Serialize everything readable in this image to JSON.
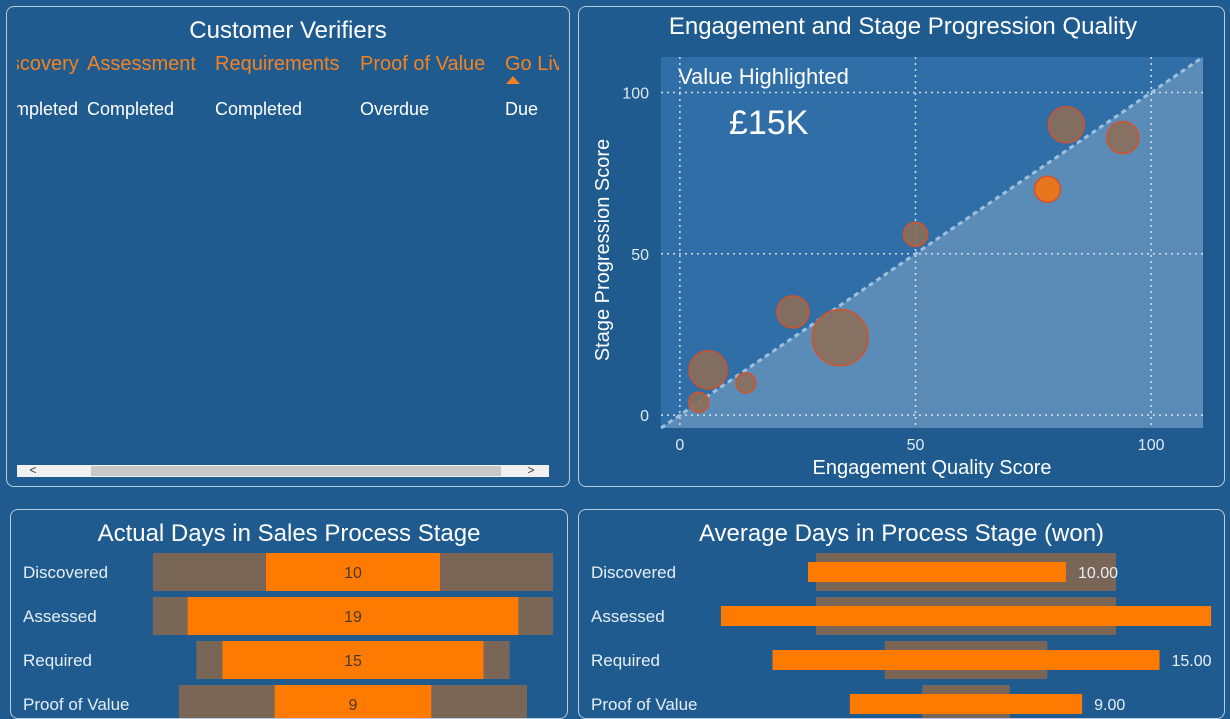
{
  "customer_verifiers": {
    "title": "Customer Verifiers",
    "columns": [
      {
        "header": "Discovery",
        "value": "Completed"
      },
      {
        "header": "Assessment",
        "value": "Completed"
      },
      {
        "header": "Requirements",
        "value": "Completed"
      },
      {
        "header": "Proof of Value",
        "value": "Overdue"
      },
      {
        "header": "Go Live",
        "value": "Due"
      }
    ],
    "sorted_column": "Go Live",
    "scroll_left": "<",
    "scroll_right": ">"
  },
  "colors": {
    "background": "#1f5b8f",
    "orange": "#ff7a00",
    "bubble": "#8b6e5a",
    "ghost_bar": "#7a6656",
    "plot_dark": "#2f6ea6",
    "plot_light": "#5b8cb8"
  },
  "chart_data": [
    {
      "type": "scatter",
      "title": "Engagement and Stage Progression Quality",
      "xlabel": "Engagement Quality Score",
      "ylabel": "Stage Progression Score",
      "xlim": [
        -4,
        111
      ],
      "ylim": [
        -4,
        111
      ],
      "xticks": [
        0,
        50,
        100
      ],
      "yticks": [
        0,
        50,
        100
      ],
      "grid": true,
      "reference_line": "y = x",
      "annotation": {
        "label": "Value Highlighted",
        "value": "£15K"
      },
      "points": [
        {
          "x": 4,
          "y": 4,
          "size": 1.0,
          "highlighted": false
        },
        {
          "x": 6,
          "y": 14,
          "size": 1.9,
          "highlighted": false
        },
        {
          "x": 14,
          "y": 10,
          "size": 1.0,
          "highlighted": false
        },
        {
          "x": 24,
          "y": 32,
          "size": 1.6,
          "highlighted": false
        },
        {
          "x": 34,
          "y": 24,
          "size": 2.8,
          "highlighted": false
        },
        {
          "x": 50,
          "y": 56,
          "size": 1.2,
          "highlighted": false
        },
        {
          "x": 78,
          "y": 70,
          "size": 1.3,
          "highlighted": true
        },
        {
          "x": 82,
          "y": 90,
          "size": 1.8,
          "highlighted": false
        },
        {
          "x": 94,
          "y": 86,
          "size": 1.6,
          "highlighted": false
        }
      ]
    },
    {
      "type": "bar",
      "title": "Actual Days in Sales Process Stage",
      "categories": [
        "Discovered",
        "Assessed",
        "Required",
        "Proof of Value"
      ],
      "values": [
        10,
        19,
        15,
        9
      ],
      "data_labels": [
        "10",
        "19",
        "15",
        "9"
      ],
      "reference_values": [
        23,
        23,
        18,
        20
      ]
    },
    {
      "type": "bar",
      "title": "Average Days in Process Stage (won)",
      "categories": [
        "Discovered",
        "Assessed",
        "Required",
        "Proof of Value"
      ],
      "values": [
        10,
        19,
        15,
        9
      ],
      "data_labels": [
        "10.00",
        "",
        "15.00",
        "9.00"
      ],
      "reference_values": [
        12,
        12,
        6.5,
        3.5
      ]
    }
  ]
}
